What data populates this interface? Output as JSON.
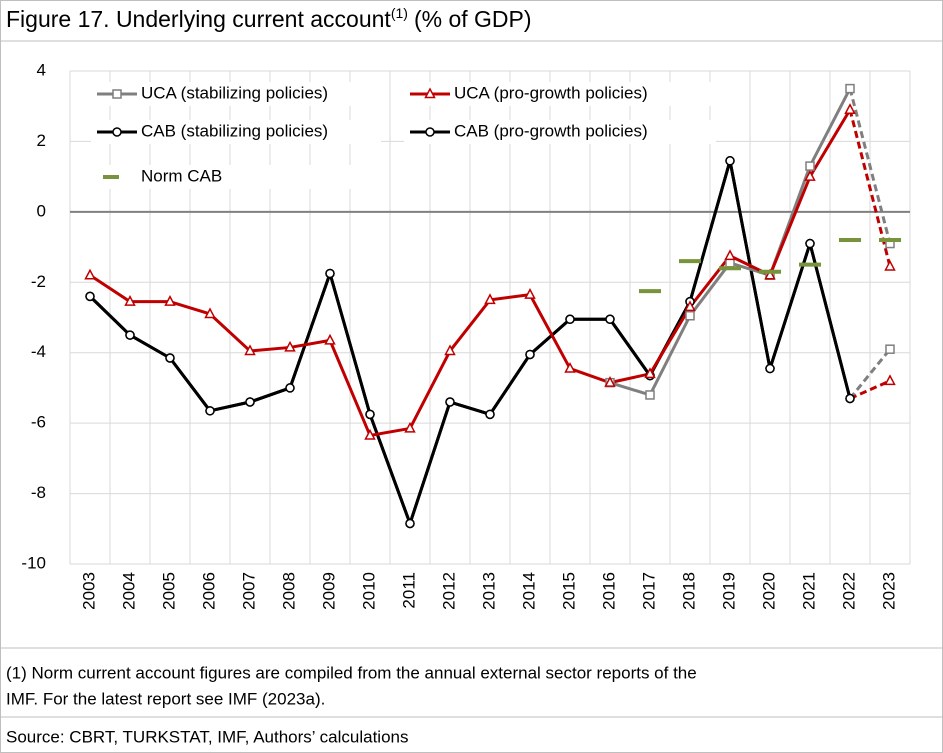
{
  "chart_data": {
    "type": "line",
    "title": {
      "text": "Figure 17. Underlying current account",
      "superscript": "(1)",
      "unit": "(% of GDP)"
    },
    "categories": [
      "2003",
      "2004",
      "2005",
      "2006",
      "2007",
      "2008",
      "2009",
      "2010",
      "2011",
      "2012",
      "2013",
      "2014",
      "2015",
      "2016",
      "2017",
      "2018",
      "2019",
      "2020",
      "2021",
      "2022",
      "2023"
    ],
    "series": [
      {
        "name": "UCA (stabilizing policies)",
        "color": "#7f7f7f",
        "marker": "square",
        "dashed_from": 19,
        "values": [
          null,
          null,
          null,
          null,
          null,
          null,
          null,
          null,
          null,
          null,
          null,
          null,
          null,
          -4.85,
          -5.2,
          -2.95,
          -1.45,
          -1.8,
          1.3,
          3.5,
          -0.9
        ]
      },
      {
        "name": "UCA (pro-growth policies)",
        "color": "#c00000",
        "marker": "triangle",
        "dashed_from": 19,
        "values": [
          -1.8,
          -2.55,
          -2.55,
          -2.9,
          -3.95,
          -3.85,
          -3.65,
          -6.35,
          -6.15,
          -3.95,
          -2.5,
          -2.35,
          -4.45,
          -4.85,
          -4.6,
          -2.7,
          -1.25,
          -1.8,
          1.0,
          2.9,
          -1.55
        ]
      },
      {
        "name": "CAB (stabilizing policies)",
        "color": "#000000",
        "marker": "circle",
        "dashed_from": 19,
        "projection_color": "#7f7f7f",
        "projection_marker": "square",
        "values": [
          -2.4,
          -3.5,
          -4.15,
          -5.65,
          -5.4,
          -5.0,
          -1.75,
          -5.75,
          -8.85,
          -5.4,
          -5.75,
          -4.05,
          -3.05,
          -3.05,
          -4.65,
          -2.55,
          1.45,
          -4.45,
          -0.9,
          -5.3,
          -3.9
        ]
      },
      {
        "name": "CAB (pro-growth policies)",
        "color": "#000000",
        "marker": "circle",
        "dashed_from": 19,
        "projection_color": "#c00000",
        "projection_marker": "triangle",
        "values": [
          -2.4,
          -3.5,
          -4.15,
          -5.65,
          -5.4,
          -5.0,
          -1.75,
          -5.75,
          -8.85,
          -5.4,
          -5.75,
          -4.05,
          -3.05,
          -3.05,
          -4.65,
          -2.55,
          1.45,
          -4.45,
          -0.9,
          -5.3,
          -4.8
        ]
      },
      {
        "name": "Norm CAB",
        "color": "#77933c",
        "marker": "dash",
        "values": [
          null,
          null,
          null,
          null,
          null,
          null,
          null,
          null,
          null,
          null,
          null,
          null,
          null,
          null,
          -2.25,
          -1.4,
          -1.6,
          -1.7,
          -1.5,
          -0.8,
          -0.8
        ]
      }
    ],
    "ylim": [
      -10,
      4
    ],
    "yticks": [
      -10,
      -8,
      -6,
      -4,
      -2,
      0,
      2,
      4
    ],
    "grid": true,
    "note": [
      "(1) Norm current account figures are compiled from the annual external sector reports of the",
      "IMF. For the latest report see IMF (2023a)."
    ],
    "source": "Source: CBRT, TURKSTAT, IMF, Authors’ calculations"
  }
}
